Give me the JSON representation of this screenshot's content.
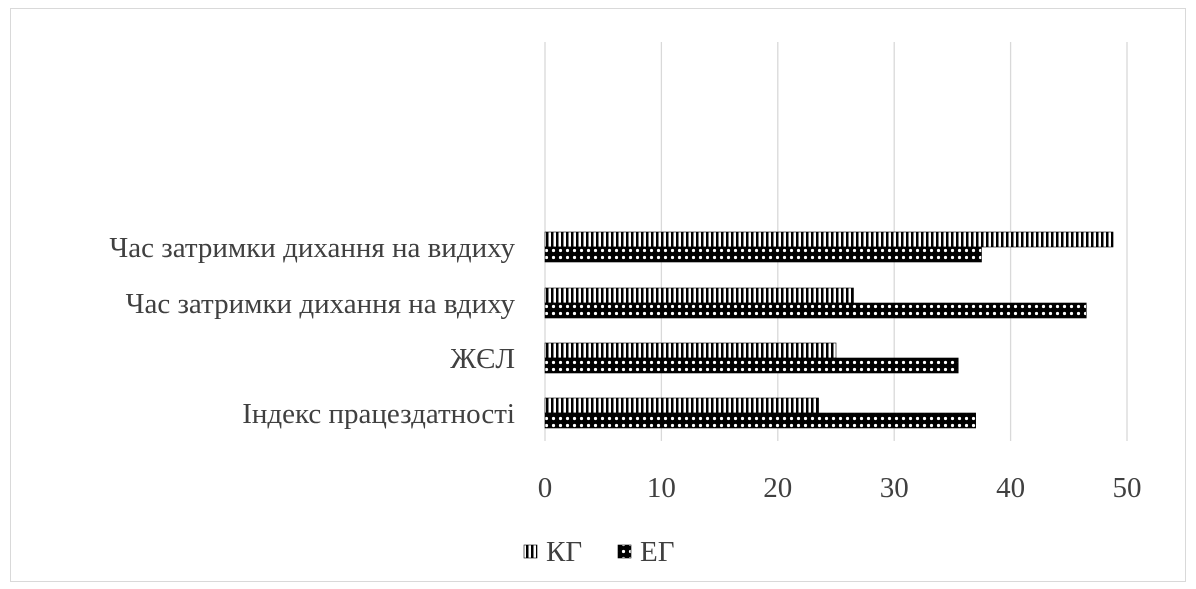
{
  "chart_data": {
    "type": "bar",
    "orientation": "horizontal",
    "categories": [
      "Час затримки дихання на видиху",
      "Час затримки дихання на вдиху",
      "ЖЄЛ",
      "Індекс працездатності"
    ],
    "series": [
      {
        "name": "КГ",
        "values": [
          48.8,
          26.5,
          25,
          23.5
        ],
        "pattern": "vertical-stripes",
        "color": "#000000"
      },
      {
        "name": "ЕГ",
        "values": [
          37.5,
          46.5,
          35.5,
          37
        ],
        "pattern": "dots-on-black",
        "color": "#000000"
      }
    ],
    "xlim": [
      0,
      50
    ],
    "xticks": [
      "0",
      "10",
      "20",
      "30",
      "40",
      "50"
    ],
    "grid": "vertical",
    "legend": "bottom-center",
    "title": "",
    "xlabel": "",
    "ylabel": ""
  }
}
